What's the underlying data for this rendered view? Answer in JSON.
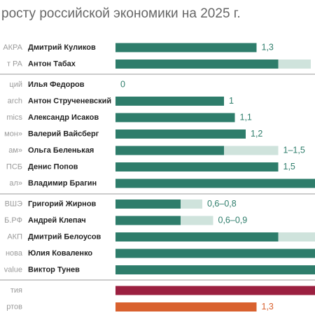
{
  "chart_data": {
    "type": "bar",
    "title": "росту российской экономики на 2025 г.",
    "color": "#2e7d6b",
    "range_color": "#cfe3dc",
    "rows": [
      {
        "org": "АКРА",
        "person": "Дмитрий Куликов",
        "values": [
          1.3
        ],
        "value_label": "1,3"
      },
      {
        "org": "т РА",
        "person": "Антон Табах",
        "values": [
          1.5,
          1.8
        ]
      },
      {
        "org": "ций",
        "person": "Илья Федоров",
        "values": [
          0
        ]
      },
      {
        "org": "arch",
        "person": "Антон Струченевский",
        "values": [
          1
        ]
      },
      {
        "org": "mics",
        "person": "Александр Исаков",
        "values": [
          1.1
        ],
        "value_label": "1,1"
      },
      {
        "org": "мон»",
        "person": "Валерий Вайсберг",
        "values": [
          1.2
        ],
        "value_label": "1,2"
      },
      {
        "org": "ам»",
        "person": "Ольга Беленькая",
        "values": [
          1,
          1.5
        ],
        "value_label": "1–1,5"
      },
      {
        "org": "ПСБ",
        "person": "Денис Попов",
        "values": [
          1.5
        ],
        "value_label": "1,5"
      },
      {
        "org": "ал»",
        "person": "Владимир Брагин",
        "values": [
          1.9
        ]
      },
      {
        "org": "ВШЭ",
        "person": "Григорий Жирнов",
        "values": [
          0.6,
          0.8
        ],
        "value_label": "0,6–0,8"
      },
      {
        "org": "Б.РФ",
        "person": "Андрей Клепач",
        "values": [
          0.6,
          0.9
        ],
        "value_label": "0,6–0,9"
      },
      {
        "org": "АКП",
        "person": "Дмитрий Белоусов",
        "values": [
          1.5,
          2
        ]
      },
      {
        "org": "нова",
        "person": "Юлия Коваленко",
        "values": [
          1.9
        ]
      },
      {
        "org": "value",
        "person": "Виктор Тунев",
        "values": [
          1.9
        ]
      },
      {
        "org": "тия",
        "values": [
          1.9
        ],
        "color": "#9b2040"
      },
      {
        "org": "ртов",
        "values": [
          1.3
        ],
        "value_label": "1,3",
        "color": "#d9612e"
      }
    ]
  }
}
